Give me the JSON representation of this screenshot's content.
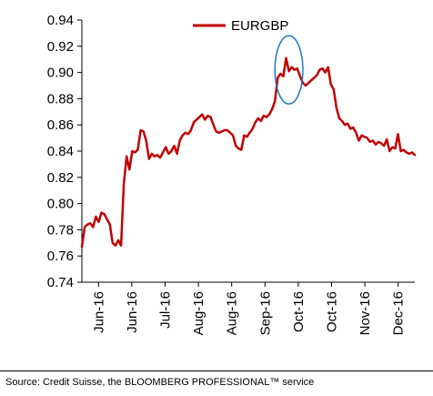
{
  "chart_data": {
    "type": "line",
    "title": "",
    "xlabel": "",
    "ylabel": "",
    "ylim": [
      0.74,
      0.94
    ],
    "yticks": [
      "0.74",
      "0.76",
      "0.78",
      "0.80",
      "0.82",
      "0.84",
      "0.86",
      "0.88",
      "0.90",
      "0.92",
      "0.94"
    ],
    "xticks": [
      "Jun-16",
      "Jun-16",
      "Jul-16",
      "Aug-16",
      "Aug-16",
      "Sep-16",
      "Oct-16",
      "Oct-16",
      "Nov-16",
      "Dec-16"
    ],
    "grid": false,
    "legend_position": "top",
    "series": [
      {
        "name": "EURGBP",
        "color": "#c00000",
        "values": [
          0.767,
          0.782,
          0.784,
          0.785,
          0.782,
          0.79,
          0.786,
          0.793,
          0.792,
          0.788,
          0.784,
          0.77,
          0.768,
          0.772,
          0.768,
          0.815,
          0.836,
          0.826,
          0.84,
          0.839,
          0.841,
          0.856,
          0.855,
          0.848,
          0.834,
          0.838,
          0.836,
          0.837,
          0.835,
          0.839,
          0.843,
          0.838,
          0.84,
          0.844,
          0.838,
          0.848,
          0.852,
          0.854,
          0.853,
          0.856,
          0.862,
          0.864,
          0.866,
          0.868,
          0.864,
          0.867,
          0.866,
          0.86,
          0.855,
          0.854,
          0.855,
          0.856,
          0.856,
          0.854,
          0.852,
          0.844,
          0.842,
          0.841,
          0.852,
          0.851,
          0.854,
          0.857,
          0.862,
          0.865,
          0.863,
          0.867,
          0.866,
          0.868,
          0.872,
          0.878,
          0.896,
          0.899,
          0.897,
          0.911,
          0.901,
          0.904,
          0.902,
          0.903,
          0.897,
          0.892,
          0.89,
          0.892,
          0.894,
          0.896,
          0.898,
          0.902,
          0.903,
          0.9,
          0.904,
          0.891,
          0.887,
          0.873,
          0.865,
          0.863,
          0.86,
          0.861,
          0.857,
          0.858,
          0.854,
          0.848,
          0.852,
          0.851,
          0.85,
          0.847,
          0.848,
          0.845,
          0.847,
          0.846,
          0.844,
          0.849,
          0.84,
          0.843,
          0.842,
          0.853,
          0.84,
          0.841,
          0.839,
          0.838,
          0.839,
          0.837
        ]
      }
    ],
    "annotation": {
      "type": "ellipse",
      "color": "#1f78c1",
      "x_range": [
        69,
        79
      ],
      "y_range": [
        0.876,
        0.928
      ]
    }
  },
  "source_text": "Source: Credit Suisse, the BLOOMBERG PROFESSIONAL™ service"
}
